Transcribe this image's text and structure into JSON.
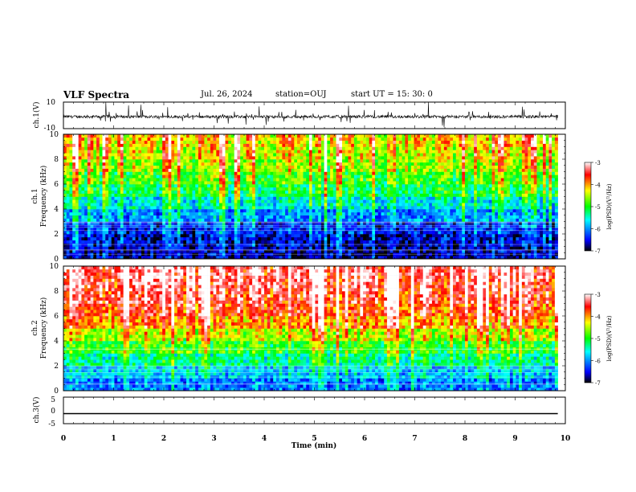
{
  "header": {
    "title": "VLF Spectra",
    "date": "Jul. 26, 2024",
    "station": "station=OUJ",
    "start_time": "start UT =  15: 30: 0"
  },
  "chart_data": [
    {
      "type": "line",
      "panel": "ch1-waveform",
      "ylabel": "ch.1(V)",
      "ylim": [
        -10,
        10
      ],
      "yticks": [
        "10",
        "-10"
      ],
      "xlim": [
        0,
        10
      ],
      "description_values": "noisy waveform around -1 V spanning 0 to 9.85 min",
      "baseline": -1,
      "x_end": 9.85
    },
    {
      "type": "heatmap",
      "panel": "ch1-spectrogram",
      "ylabel_channel": "ch.1",
      "ylabel": "Frequency (kHz)",
      "ylim": [
        0,
        10
      ],
      "yticks": [
        "0",
        "2",
        "4",
        "6",
        "8",
        "10"
      ],
      "xlim": [
        0,
        9.85
      ],
      "colorbar": {
        "label": "log(PSD)(V²/Hz)",
        "range": [
          -7,
          -3
        ],
        "ticks": [
          "-3",
          "-4",
          "-5",
          "-6",
          "-7"
        ]
      },
      "mean_profile_low_to_high": [
        -6.7,
        -6.6,
        -6.4,
        -6.0,
        -5.6,
        -5.2,
        -4.9,
        -4.6,
        -4.4,
        -4.2
      ]
    },
    {
      "type": "heatmap",
      "panel": "ch2-spectrogram",
      "ylabel_channel": "ch.2",
      "ylabel": "Frequency (kHz)",
      "ylim": [
        0,
        10
      ],
      "yticks": [
        "0",
        "2",
        "4",
        "6",
        "8",
        "10"
      ],
      "xlim": [
        0,
        9.85
      ],
      "colorbar": {
        "label": "log(PSD)(V²/Hz)",
        "range": [
          -7,
          -3
        ],
        "ticks": [
          "-3",
          "-4",
          "-5",
          "-6",
          "-7"
        ]
      },
      "mean_profile_low_to_high": [
        -6.1,
        -5.8,
        -5.4,
        -5.0,
        -4.5,
        -4.0,
        -3.7,
        -3.5,
        -3.4,
        -3.3
      ]
    },
    {
      "type": "line",
      "panel": "ch3-waveform",
      "ylabel": "ch.3(V)",
      "ylim": [
        -5,
        5
      ],
      "yticks": [
        "5",
        "0",
        "-5"
      ],
      "xlim": [
        0,
        10
      ],
      "x": [
        0,
        9.85
      ],
      "y": [
        -1.2,
        -1.2
      ]
    }
  ],
  "x_axis": {
    "label": "Time (min)",
    "ticks": [
      "0",
      "1",
      "2",
      "3",
      "4",
      "5",
      "6",
      "7",
      "8",
      "9",
      "10"
    ]
  },
  "colors": {
    "colormap": [
      "#000000",
      "#0000ff",
      "#00ffff",
      "#00ff00",
      "#ffff00",
      "#ff0000",
      "#ffffff"
    ]
  }
}
